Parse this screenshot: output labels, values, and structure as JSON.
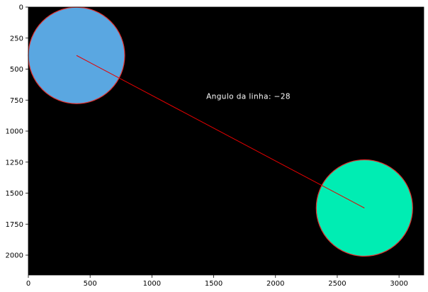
{
  "chart_data": {
    "type": "scatter",
    "title": "",
    "xlabel": "",
    "ylabel": "",
    "image_extent": {
      "width": 3200,
      "height": 2160
    },
    "xlim": [
      0,
      3200
    ],
    "ylim": [
      2160,
      0
    ],
    "y_inverted": true,
    "grid": false,
    "background": "#000000",
    "xticks": [
      0,
      500,
      1000,
      1500,
      2000,
      2500,
      3000
    ],
    "yticks": [
      0,
      250,
      500,
      750,
      1000,
      1250,
      1500,
      1750,
      2000
    ],
    "circles": [
      {
        "cx": 390,
        "cy": 390,
        "r": 390,
        "fill": "#5aa7e1",
        "stroke": "#e0302f"
      },
      {
        "cx": 2720,
        "cy": 1620,
        "r": 390,
        "fill": "#00edb3",
        "stroke": "#e0302f"
      }
    ],
    "line": {
      "x": [
        390,
        2720
      ],
      "y": [
        390,
        1620
      ],
      "color": "#e60000"
    },
    "annotation": {
      "text": "Angulo da linha: −28",
      "x": 1440,
      "y": 740
    }
  }
}
